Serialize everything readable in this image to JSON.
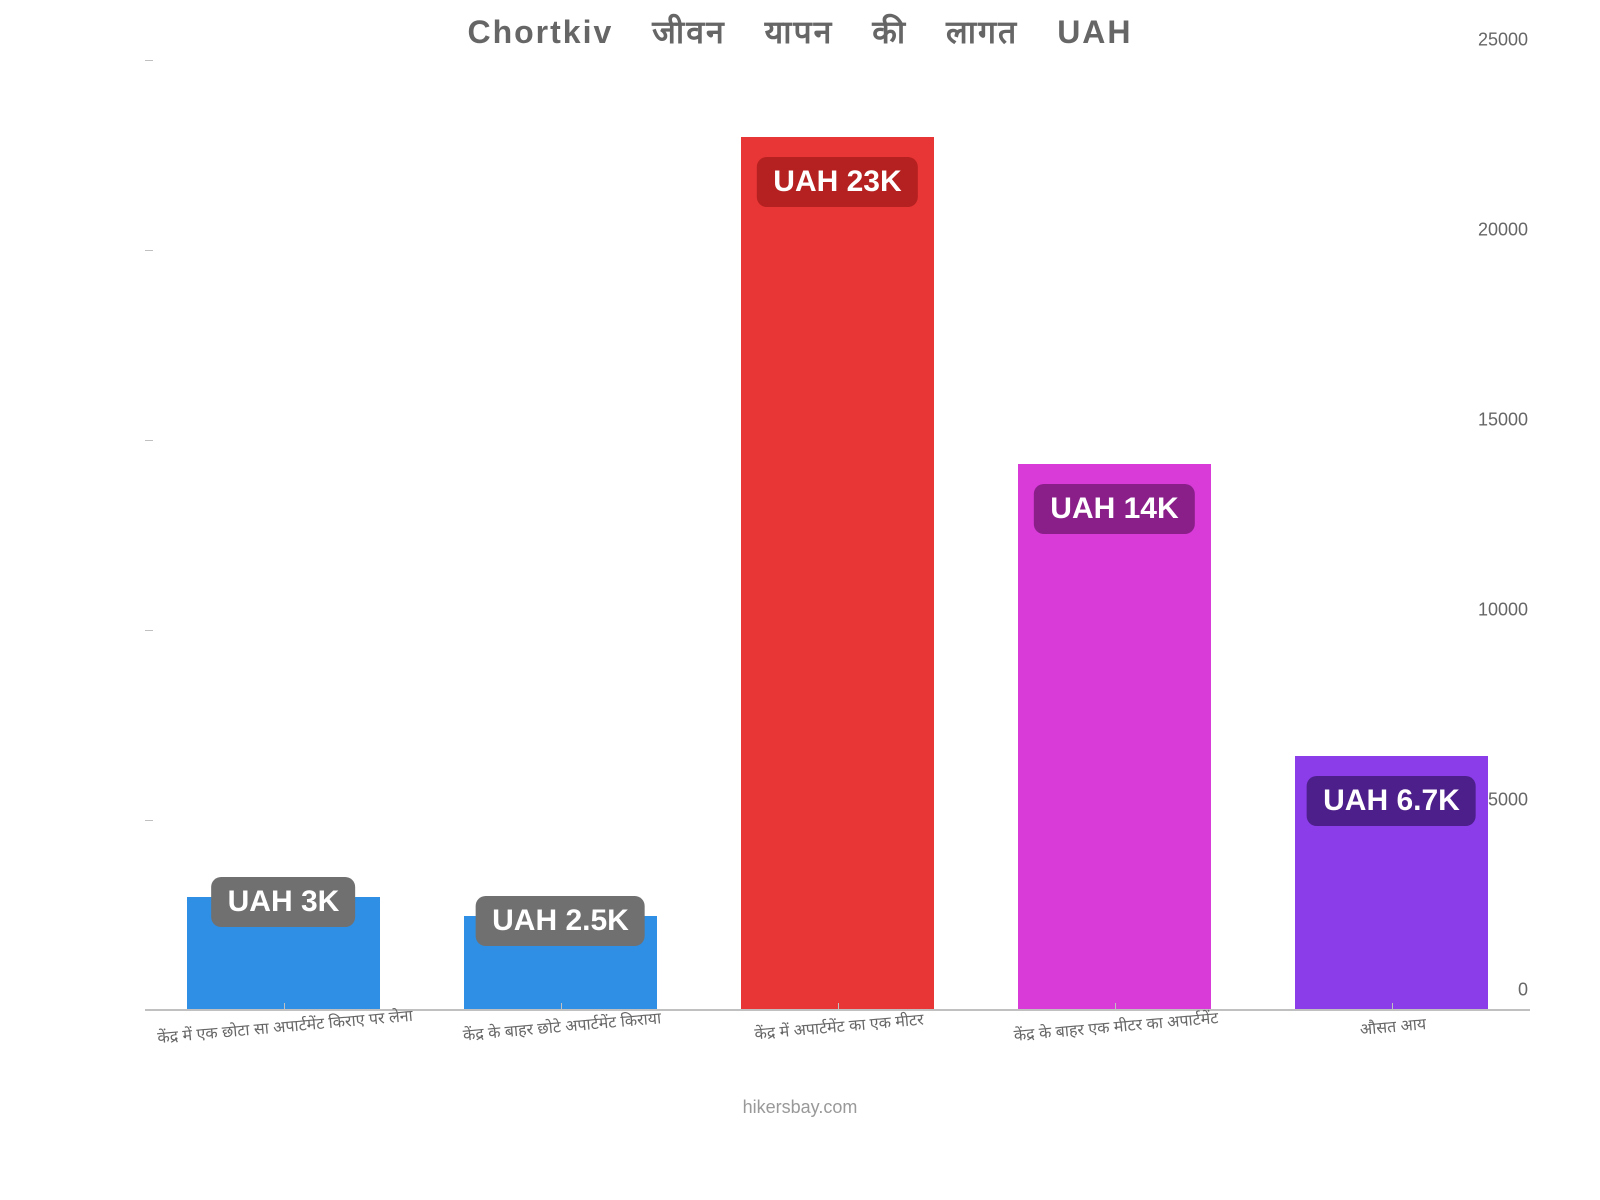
{
  "chart": {
    "type": "bar",
    "title": "Chortkiv जीवन यापन की लागत UAH",
    "title_fontsize": 32,
    "title_color": "#666666",
    "background_color": "#ffffff",
    "axis_color": "#c0c0c0",
    "tick_label_color": "#666666",
    "tick_label_fontsize": 18,
    "x_label_fontsize": 16,
    "x_label_rotation_deg": -5,
    "ylim": [
      0,
      25000
    ],
    "ytick_step": 5000,
    "yticks": [
      0,
      5000,
      10000,
      15000,
      20000,
      25000
    ],
    "bar_width": 0.7,
    "categories": [
      "केंद्र में एक छोटा सा अपार्टमेंट किराए पर लेना",
      "केंद्र के बाहर छोटे अपार्टमेंट किराया",
      "केंद्र में अपार्टमेंट का एक मीटर",
      "केंद्र के बाहर एक मीटर का अपार्टमेंट",
      "औसत आय"
    ],
    "values": [
      3000,
      2500,
      23000,
      14400,
      6700
    ],
    "bar_colors": [
      "#2f8fe5",
      "#2f8fe5",
      "#e83535",
      "#d83bd8",
      "#8a3de8"
    ],
    "value_labels": [
      "UAH 3K",
      "UAH 2.5K",
      "UAH 23K",
      "UAH 14K",
      "UAH 6.7K"
    ],
    "badge_bg_colors": [
      "#707070",
      "#707070",
      "#b52020",
      "#8a1f8a",
      "#4d1f8a"
    ],
    "badge_fontsize": 30,
    "badge_text_color": "#ffffff",
    "attribution": "hikersbay.com",
    "attribution_fontsize": 18,
    "attribution_color": "#999999"
  }
}
